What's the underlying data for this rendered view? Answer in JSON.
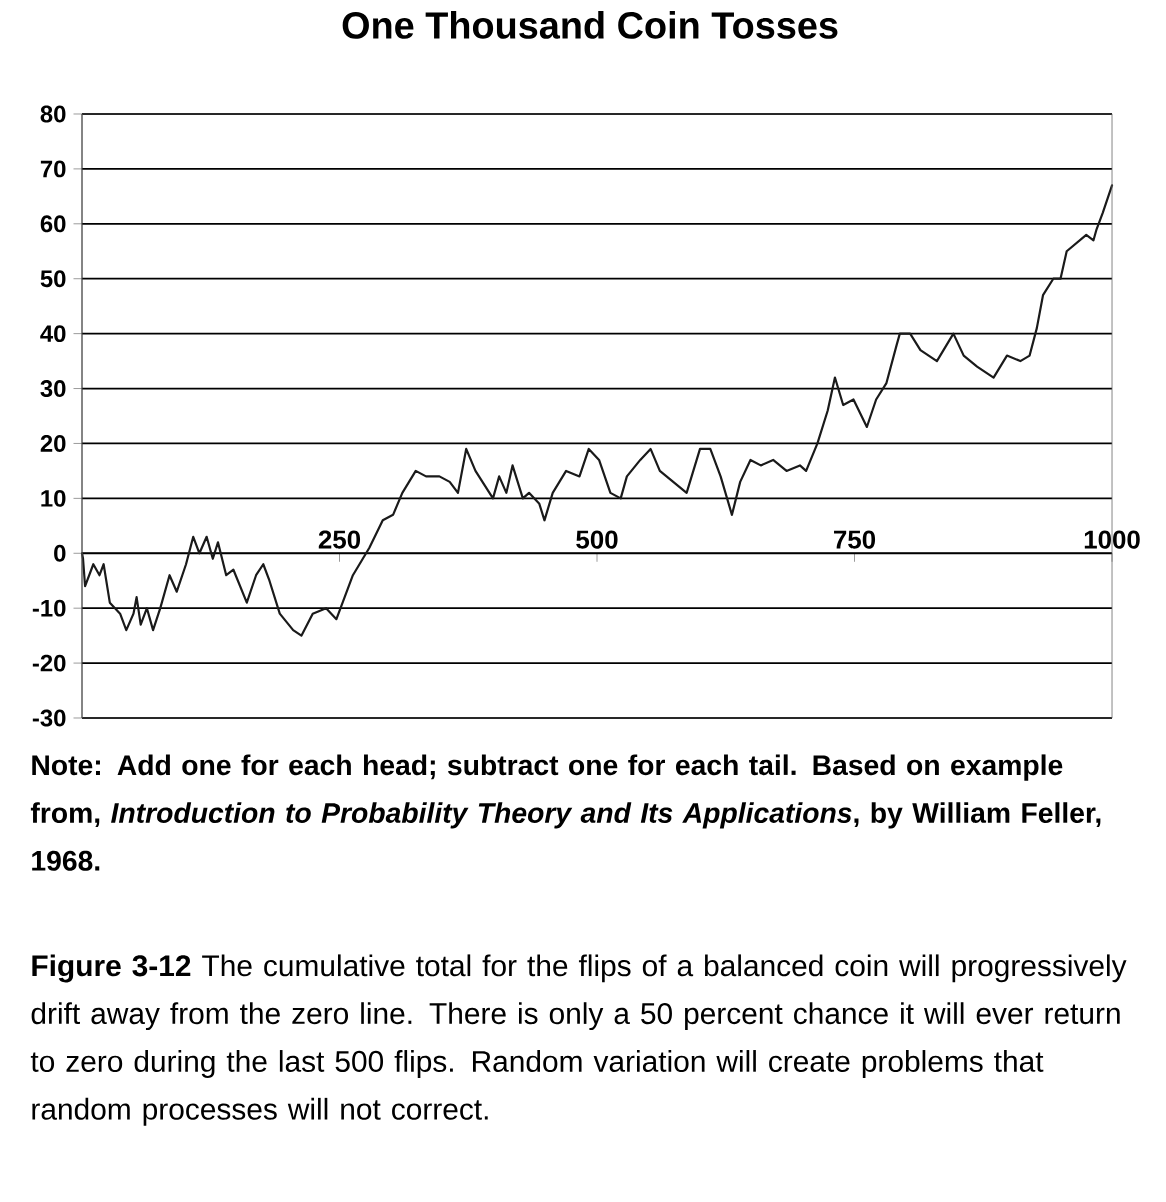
{
  "chart_data": {
    "type": "line",
    "title": "One Thousand Coin Tosses",
    "x": [
      0,
      1,
      3,
      11,
      17,
      21,
      27,
      37,
      43,
      50,
      53,
      57,
      63,
      69,
      76,
      85,
      92,
      101,
      108,
      114,
      121,
      127,
      132,
      140,
      147,
      160,
      169,
      176,
      182,
      192,
      205,
      213,
      224,
      237,
      247,
      253,
      263,
      279,
      292,
      302,
      311,
      324,
      334,
      347,
      357,
      365,
      373,
      382,
      399,
      405,
      412,
      418,
      428,
      434,
      444,
      449,
      457,
      470,
      483,
      492,
      502,
      513,
      523,
      529,
      542,
      552,
      561,
      574,
      587,
      600,
      610,
      620,
      631,
      639,
      649,
      659,
      671,
      684,
      697,
      703,
      714,
      724,
      731,
      739,
      749,
      762,
      771,
      781,
      791,
      794,
      804,
      814,
      830,
      846,
      856,
      869,
      885,
      898,
      911,
      920,
      927,
      933,
      943,
      950,
      956,
      975,
      982,
      985,
      991,
      1000
    ],
    "series": [
      {
        "color": "#1a1a1a",
        "values": [
          0,
          -1,
          -6,
          -2,
          -4,
          -2,
          -9,
          -11,
          -14,
          -11,
          -8,
          -13,
          -10,
          -14,
          -10,
          -4,
          -7,
          -2,
          3,
          0,
          3,
          -1,
          2,
          -4,
          -3,
          -9,
          -4,
          -2,
          -5,
          -11,
          -14,
          -15,
          -11,
          -10,
          -12,
          -9,
          -4,
          1,
          6,
          7,
          11,
          15,
          14,
          14,
          13,
          11,
          19,
          15,
          10,
          14,
          11,
          16,
          10,
          11,
          9,
          6,
          11,
          15,
          14,
          19,
          17,
          11,
          10,
          14,
          17,
          19,
          15,
          13,
          11,
          19,
          19,
          14,
          7,
          13,
          17,
          16,
          17,
          15,
          16,
          15,
          20,
          26,
          32,
          27,
          28,
          23,
          28,
          31,
          38,
          40,
          40,
          37,
          35,
          40,
          36,
          34,
          32,
          36,
          35,
          36,
          41,
          47,
          50,
          50,
          55,
          58,
          57,
          59,
          62,
          67
        ]
      }
    ],
    "xlim": [
      0,
      1000
    ],
    "ylim": [
      -30,
      80
    ],
    "xticks": [
      250,
      500,
      750,
      1000
    ],
    "yticks": [
      -30,
      -20,
      -10,
      0,
      10,
      20,
      30,
      40,
      50,
      60,
      70,
      80
    ],
    "grid": "y",
    "marker": "none",
    "line_style": "solid",
    "annotations": [
      "Note: Add one for each head; subtract one for each tail. Based on example from, *Introduction to Probability Theory and Its Applications*, by William Feller, 1968.",
      "**Figure 3-12** The cumulative total for the flips of a balanced coin will progressively drift away from the zero line. There is only a 50 percent chance it will ever return to zero during the last 500 flips. Random variation will create problems that random processes will not correct."
    ]
  }
}
